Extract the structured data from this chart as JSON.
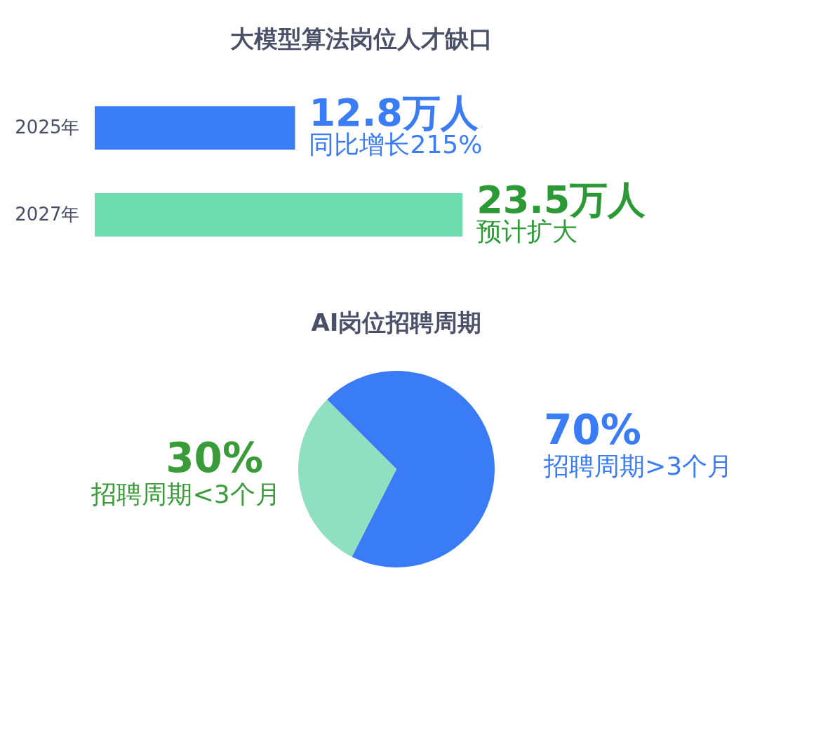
{
  "chart_data": [
    {
      "type": "bar",
      "orientation": "horizontal",
      "title": "大模型算法岗位人才缺口",
      "categories": [
        "2025年",
        "2027年"
      ],
      "values": [
        12.8,
        23.5
      ],
      "colors": [
        "#3a7bf6",
        "#6fdcb0"
      ],
      "value_labels": [
        "12.8万人",
        "23.5万人"
      ],
      "annotations": [
        {
          "text": "同比增长215%",
          "x": 12.8,
          "y": "2025年"
        },
        {
          "text": "预计扩大",
          "x": 23.5,
          "y": "2027年"
        }
      ]
    },
    {
      "type": "pie",
      "title": "AI岗位招聘周期",
      "categories": [
        "招聘周期>3个月",
        "招聘周期<3个月"
      ],
      "values": [
        70,
        30
      ],
      "colors": [
        "#3a7bf6",
        "#8fe0c0"
      ],
      "value_labels": [
        "70%",
        "30%"
      ]
    }
  ]
}
